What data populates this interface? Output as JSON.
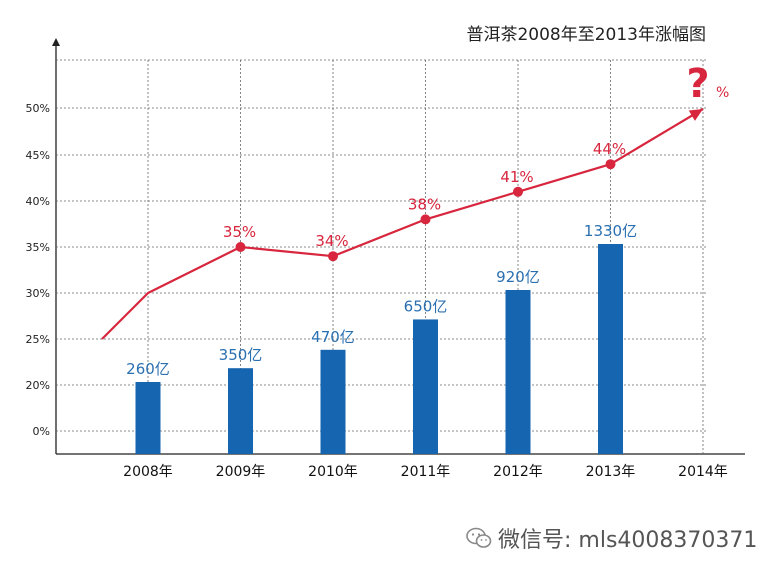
{
  "chart_data": {
    "type": "bar+line",
    "title": "普洱茶2008年至2013年涨幅图",
    "categories": [
      "2008年",
      "2009年",
      "2010年",
      "2011年",
      "2012年",
      "2013年",
      "2014年"
    ],
    "y_ticks": [
      "0%",
      "20%",
      "25%",
      "30%",
      "35%",
      "40%",
      "45%",
      "50%"
    ],
    "bars": {
      "color": "#1565b0",
      "points": [
        {
          "x": "2008年",
          "label": "260亿",
          "level": "20%"
        },
        {
          "x": "2009年",
          "label": "350亿",
          "level": "21.5%"
        },
        {
          "x": "2010年",
          "label": "470亿",
          "level": "23.5%"
        },
        {
          "x": "2011年",
          "label": "650亿",
          "level": "26.8%"
        },
        {
          "x": "2012年",
          "label": "920亿",
          "level": "30%"
        },
        {
          "x": "2013年",
          "label": "1330亿",
          "level": "35%"
        }
      ]
    },
    "line": {
      "color": "#d7263d",
      "points": [
        {
          "x": "start",
          "value": 25,
          "label": ""
        },
        {
          "x": "2008年",
          "value": 30,
          "label": ""
        },
        {
          "x": "2009年",
          "value": 35,
          "label": "35%"
        },
        {
          "x": "2010年",
          "value": 34,
          "label": "34%"
        },
        {
          "x": "2011年",
          "value": 38,
          "label": "38%"
        },
        {
          "x": "2012年",
          "value": 41,
          "label": "41%"
        },
        {
          "x": "2013年",
          "value": 44,
          "label": "44%"
        },
        {
          "x": "2014年",
          "value": 50,
          "label": "",
          "arrow": true
        }
      ],
      "end_label": "?",
      "end_suffix": "%"
    },
    "grid": true
  },
  "watermark": {
    "text": "微信号: mls4008370371",
    "icon": "wechat-icon"
  }
}
